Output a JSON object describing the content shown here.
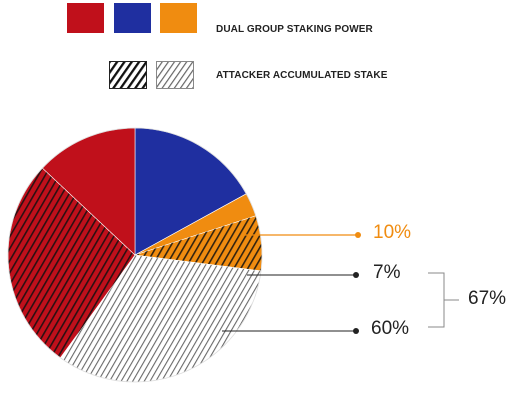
{
  "legend": {
    "rows": [
      {
        "label": "DUAL GROUP STAKING POWER",
        "swatches": [
          "#c0101b",
          "#1f2fa0",
          "#f08c10"
        ]
      },
      {
        "label": "ATTACKER ACCUMULATED STAKE",
        "swatches": [
          "hatch-dark",
          "hatch-light"
        ]
      }
    ]
  },
  "callouts": {
    "orange": "10%",
    "small": "7%",
    "large": "60%",
    "bracket": "67%"
  },
  "colors": {
    "red": "#c0101b",
    "blue": "#1f2fa0",
    "orange": "#f08c10",
    "white": "#ffffff",
    "line": "#222222"
  },
  "chart_data": {
    "type": "pie",
    "title": "",
    "series": [
      {
        "name": "DUAL GROUP STAKING POWER",
        "colors": [
          "#c0101b",
          "#1f2fa0",
          "#f08c10"
        ]
      },
      {
        "name": "ATTACKER ACCUMULATED STAKE",
        "patterns": [
          "hatch-dark",
          "hatch-light"
        ]
      }
    ],
    "slices": [
      {
        "group": "DUAL GROUP STAKING POWER",
        "color": "#1f2fa0",
        "value": 17
      },
      {
        "group": "DUAL GROUP STAKING POWER",
        "color": "#f08c10",
        "value": 3,
        "label": "10%"
      },
      {
        "group": "ATTACKER ACCUMULATED STAKE",
        "color": "#f08c10",
        "pattern": "hatch-dark",
        "value": 7,
        "label": "7%"
      },
      {
        "group": "ATTACKER ACCUMULATED STAKE",
        "color": "#ffffff",
        "pattern": "hatch-light",
        "value": 33,
        "label": "60%"
      },
      {
        "group": "ATTACKER ACCUMULATED STAKE",
        "color": "#c0101b",
        "pattern": "hatch-dark",
        "value": 27,
        "label": "60%"
      },
      {
        "group": "DUAL GROUP STAKING POWER",
        "color": "#c0101b",
        "value": 13
      }
    ],
    "bracket_label": "67%"
  }
}
